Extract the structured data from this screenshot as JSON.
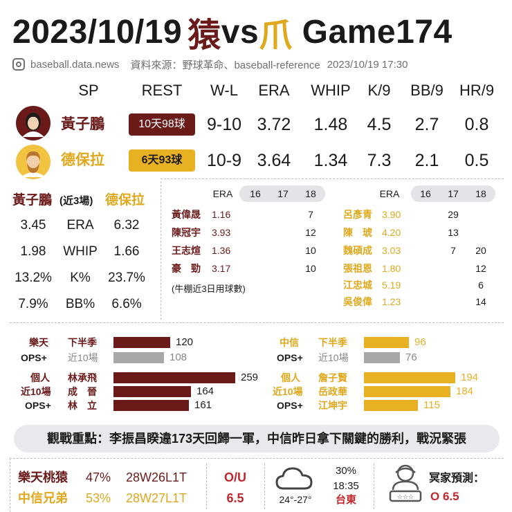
{
  "header": {
    "date": "2023/10/19",
    "team_home_glyph": "猿",
    "vs": "vs",
    "team_away_glyph": "爪",
    "game": "Game174",
    "site": "baseball.data.news",
    "source": "資料來源：野球革命、baseball-reference",
    "timestamp": "2023/10/19 17:30"
  },
  "sp_table": {
    "headers": [
      "SP",
      "REST",
      "W-L",
      "ERA",
      "WHIP",
      "K/9",
      "BB/9",
      "HR/9"
    ],
    "rows": [
      {
        "name": "黃子鵬",
        "rest": "10天98球",
        "wl": "9-10",
        "era": "3.72",
        "whip": "1.48",
        "k9": "4.5",
        "bb9": "2.7",
        "hr9": "0.8"
      },
      {
        "name": "德保拉",
        "rest": "6天93球",
        "wl": "10-9",
        "era": "3.64",
        "whip": "1.34",
        "k9": "7.3",
        "bb9": "2.1",
        "hr9": "0.5"
      }
    ]
  },
  "compare": {
    "left_name": "黃子鵬",
    "note": "(近3場)",
    "right_name": "德保拉",
    "rows": [
      {
        "l": "3.45",
        "label": "ERA",
        "r": "6.32"
      },
      {
        "l": "1.98",
        "label": "WHIP",
        "r": "1.66"
      },
      {
        "l": "13.2%",
        "label": "K%",
        "r": "23.7%"
      },
      {
        "l": "7.9%",
        "label": "BB%",
        "r": "6.6%"
      }
    ]
  },
  "bullpen": {
    "headers": [
      "ERA",
      "16",
      "17",
      "18"
    ],
    "left": [
      {
        "name": "黃偉晟",
        "era": "1.16",
        "c16": "",
        "c17": "",
        "c18": "7"
      },
      {
        "name": "陳冠宇",
        "era": "3.93",
        "c16": "",
        "c17": "",
        "c18": "12"
      },
      {
        "name": "王志煊",
        "era": "1.36",
        "c16": "",
        "c17": "",
        "c18": "10"
      },
      {
        "name": "豪　勁",
        "era": "3.17",
        "c16": "",
        "c17": "",
        "c18": "10"
      }
    ],
    "right": [
      {
        "name": "呂彥青",
        "era": "3.90",
        "c16": "",
        "c17": "29",
        "c18": ""
      },
      {
        "name": "陳　琥",
        "era": "4.20",
        "c16": "",
        "c17": "13",
        "c18": ""
      },
      {
        "name": "魏碩成",
        "era": "3.03",
        "c16": "",
        "c17": "7",
        "c18": "20"
      },
      {
        "name": "張祖恩",
        "era": "1.80",
        "c16": "",
        "c17": "",
        "c18": "12"
      },
      {
        "name": "江忠城",
        "era": "5.19",
        "c16": "",
        "c17": "",
        "c18": "6"
      },
      {
        "name": "吳俊偉",
        "era": "1.23",
        "c16": "",
        "c17": "",
        "c18": "14"
      }
    ],
    "note": "(牛棚近3日用球數)"
  },
  "ops": {
    "left": {
      "team": "樂天",
      "team_ops": "OPS+",
      "second_half": "下半季",
      "last10": "近10場",
      "second_half_val": 120,
      "last10_val": 108,
      "ind1": "個人",
      "ind2": "近10場",
      "ind3": "OPS+",
      "players": [
        {
          "name": "林承飛",
          "val": 259
        },
        {
          "name": "成　晉",
          "val": 164
        },
        {
          "name": "林　立",
          "val": 161
        }
      ]
    },
    "right": {
      "team": "中信",
      "team_ops": "OPS+",
      "second_half": "下半季",
      "last10": "近10場",
      "second_half_val": 96,
      "last10_val": 76,
      "ind1": "個人",
      "ind2": "近10場",
      "ind3": "OPS+",
      "players": [
        {
          "name": "詹子賢",
          "val": 194
        },
        {
          "name": "岳政華",
          "val": 184
        },
        {
          "name": "江坤宇",
          "val": 115
        }
      ]
    }
  },
  "focus": "觀戰重點：李振昌睽違173天回歸一軍，中信昨日拿下關鍵的勝利，戰況緊張",
  "bottom": {
    "teams": [
      {
        "name": "樂天桃猿",
        "pct": "47%",
        "rec": "28W26L1T"
      },
      {
        "name": "中信兄弟",
        "pct": "53%",
        "rec": "28W27L1T"
      }
    ],
    "ou_label": "O/U",
    "ou_val": "6.5",
    "temp": "24°-27°",
    "rain": "30%",
    "time": "18:35",
    "venue": "台東",
    "expert_label": "冥家預測：",
    "expert_pick": "O 6.5"
  },
  "colors": {
    "maroon": "#6b1a1a",
    "gold": "#e8b124",
    "gray_bar": "#a8a8a8",
    "red": "#c0262c"
  }
}
